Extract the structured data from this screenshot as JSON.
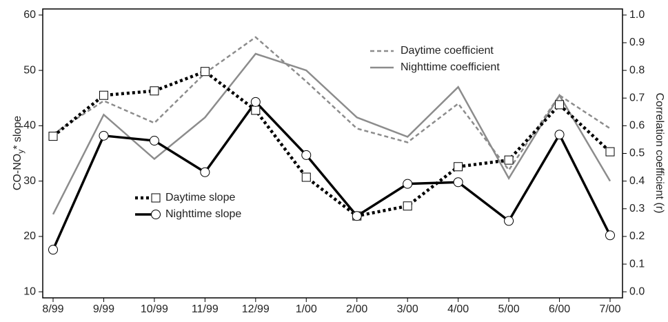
{
  "chart_data": {
    "type": "line",
    "ylabel": [
      "CO-NO",
      "y",
      "* slope"
    ],
    "y2label": "Correlation coefficient (r)",
    "categories": [
      "8/99",
      "9/99",
      "10/99",
      "11/99",
      "12/99",
      "1/00",
      "2/00",
      "3/00",
      "4/00",
      "5/00",
      "6/00",
      "7/00"
    ],
    "ylim": [
      8.9,
      61.1
    ],
    "yticks": [
      10,
      20,
      30,
      40,
      50,
      60
    ],
    "y2lim": [
      -0.022,
      1.022
    ],
    "y2ticks": [
      {
        "value": 0,
        "label": "0.0"
      },
      0.1,
      0.2,
      0.3,
      0.4,
      0.5,
      0.6,
      0.7,
      0.8,
      0.9,
      {
        "value": 1,
        "label": "1.0"
      }
    ],
    "series": [
      {
        "name": "Daytime slope",
        "color": "#000000",
        "style": "dotted",
        "marker": "square",
        "values": [
          38.1,
          45.5,
          46.3,
          49.8,
          42.8,
          30.7,
          23.7,
          25.5,
          32.6,
          33.8,
          43.8,
          35.3
        ]
      },
      {
        "name": "Nighttime slope",
        "color": "#000000",
        "style": "solid",
        "marker": "circle",
        "values": [
          17.6,
          38.2,
          37.3,
          31.6,
          44.3,
          34.7,
          23.7,
          29.5,
          29.8,
          22.8,
          38.4,
          20.2
        ]
      },
      {
        "name": "Daytime coefficient",
        "color": "#8c8c8c",
        "style": "dashed",
        "axis": "y2",
        "values": [
          0.57,
          0.69,
          0.61,
          0.79,
          0.92,
          0.76,
          0.59,
          0.54,
          0.68,
          0.44,
          0.71,
          0.59
        ]
      },
      {
        "name": "Nighttime coefficient",
        "color": "#8c8c8c",
        "style": "solid",
        "axis": "y2",
        "values": [
          0.28,
          0.64,
          0.48,
          0.63,
          0.86,
          0.8,
          0.63,
          0.56,
          0.74,
          0.41,
          0.71,
          0.4
        ]
      }
    ]
  }
}
